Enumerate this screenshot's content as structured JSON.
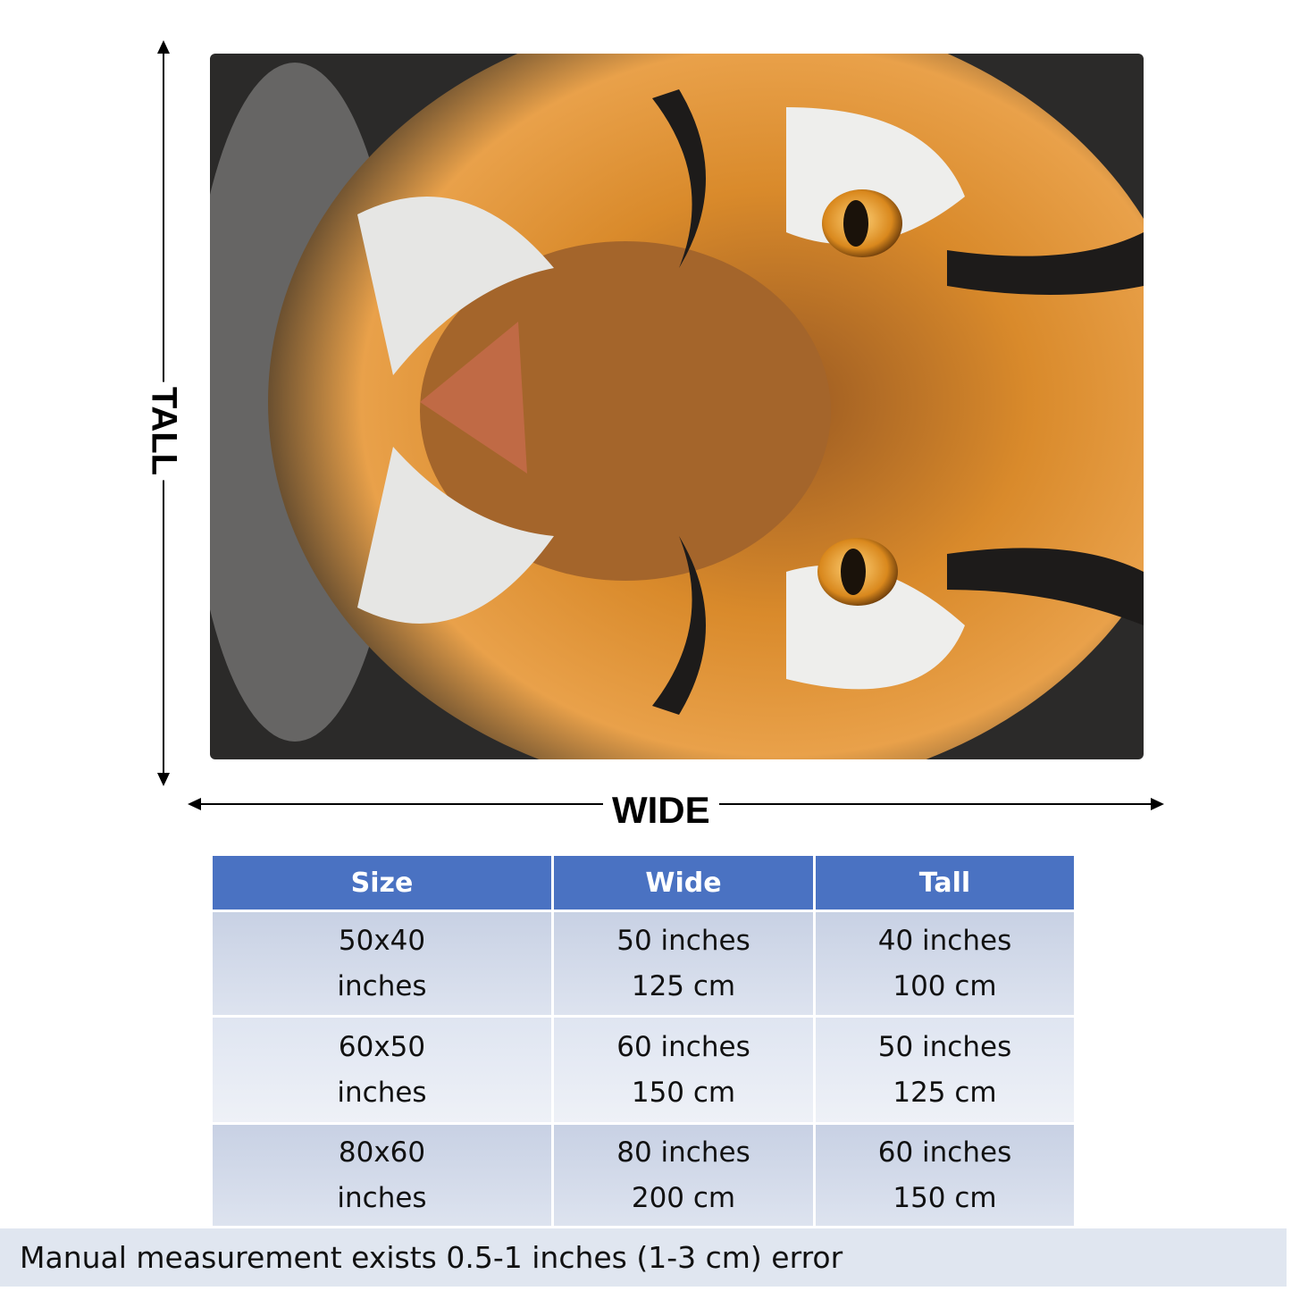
{
  "dimensions": {
    "tall": "TALL",
    "wide": "WIDE"
  },
  "table": {
    "header": [
      "Size",
      "Wide",
      "Tall"
    ],
    "rows": [
      [
        [
          "50x40",
          "inches"
        ],
        [
          "50 inches",
          "125 cm"
        ],
        [
          "40 inches",
          "100 cm"
        ]
      ],
      [
        [
          "60x50",
          "inches"
        ],
        [
          "60 inches",
          "150 cm"
        ],
        [
          "50 inches",
          "125 cm"
        ]
      ],
      [
        [
          "80x60",
          "inches"
        ],
        [
          "80 inches",
          "200 cm"
        ],
        [
          "60 inches",
          "150 cm"
        ]
      ]
    ]
  },
  "note": "Manual measurement exists 0.5-1 inches (1-3 cm) error"
}
